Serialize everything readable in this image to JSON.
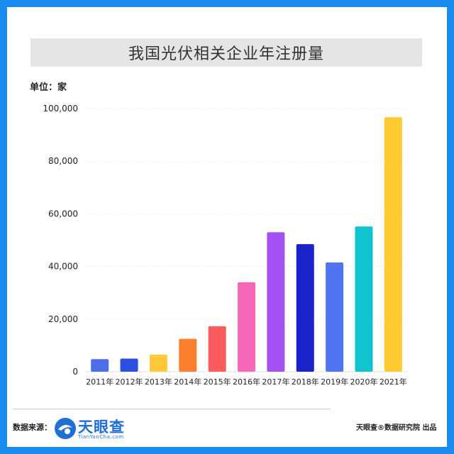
{
  "header": {
    "title": "我国光伏相关企业年注册量"
  },
  "unit_label": "单位：家",
  "footer": {
    "source_label": "数据来源：",
    "logo_text": "天眼查",
    "logo_sub": "TianYanCha.com",
    "credit": "天眼查®数据研究院 出品"
  },
  "colors": {
    "background": "#1a8cf0",
    "title_bar": "#e5e5e5",
    "logo": "#1f6fd6"
  },
  "chart_data": {
    "type": "bar",
    "title": "我国光伏相关企业年注册量",
    "xlabel": "",
    "ylabel": "单位：家",
    "ylim": [
      0,
      100000
    ],
    "yticks": [
      0,
      20000,
      40000,
      60000,
      80000,
      100000
    ],
    "ytick_labels": [
      "0",
      "20,000",
      "40,000",
      "60,000",
      "80,000",
      "100,000"
    ],
    "grid": true,
    "categories": [
      "2011年",
      "2012年",
      "2013年",
      "2014年",
      "2015年",
      "2016年",
      "2017年",
      "2018年",
      "2019年",
      "2020年",
      "2021年"
    ],
    "values": [
      4800,
      5000,
      6500,
      12500,
      17300,
      34000,
      53000,
      48500,
      41500,
      55200,
      96700
    ],
    "bar_colors": [
      "#4f6de8",
      "#2d4fe0",
      "#fdc93a",
      "#fb7f2e",
      "#fb5c5c",
      "#f768b8",
      "#a450f2",
      "#1a23c8",
      "#5074ef",
      "#10c4cf",
      "#fdca2f"
    ]
  }
}
